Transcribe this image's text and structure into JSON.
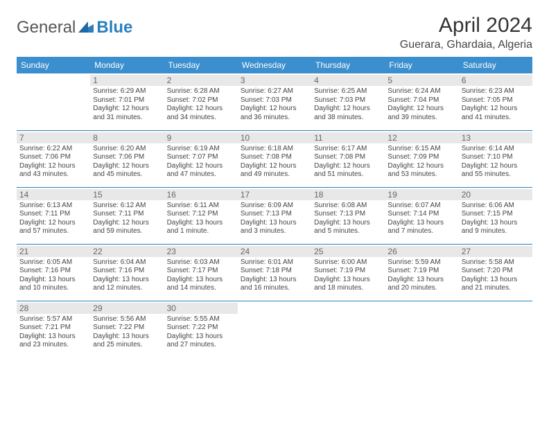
{
  "logo": {
    "word1": "General",
    "word2": "Blue"
  },
  "header": {
    "title": "April 2024",
    "location": "Guerara, Ghardaia, Algeria"
  },
  "style": {
    "header_bg": "#3b8fce",
    "header_fg": "#ffffff",
    "border_color": "#2a7fbf",
    "daynum_bg": "#e8e8e8",
    "logo_blue": "#2a7fbf",
    "title_fontsize": 30,
    "location_fontsize": 16,
    "th_fontsize": 12,
    "cell_fontsize": 10
  },
  "weekdays": [
    "Sunday",
    "Monday",
    "Tuesday",
    "Wednesday",
    "Thursday",
    "Friday",
    "Saturday"
  ],
  "days": [
    {
      "n": 1,
      "sr": "6:29 AM",
      "ss": "7:01 PM",
      "dl": "12 hours and 31 minutes."
    },
    {
      "n": 2,
      "sr": "6:28 AM",
      "ss": "7:02 PM",
      "dl": "12 hours and 34 minutes."
    },
    {
      "n": 3,
      "sr": "6:27 AM",
      "ss": "7:03 PM",
      "dl": "12 hours and 36 minutes."
    },
    {
      "n": 4,
      "sr": "6:25 AM",
      "ss": "7:03 PM",
      "dl": "12 hours and 38 minutes."
    },
    {
      "n": 5,
      "sr": "6:24 AM",
      "ss": "7:04 PM",
      "dl": "12 hours and 39 minutes."
    },
    {
      "n": 6,
      "sr": "6:23 AM",
      "ss": "7:05 PM",
      "dl": "12 hours and 41 minutes."
    },
    {
      "n": 7,
      "sr": "6:22 AM",
      "ss": "7:06 PM",
      "dl": "12 hours and 43 minutes."
    },
    {
      "n": 8,
      "sr": "6:20 AM",
      "ss": "7:06 PM",
      "dl": "12 hours and 45 minutes."
    },
    {
      "n": 9,
      "sr": "6:19 AM",
      "ss": "7:07 PM",
      "dl": "12 hours and 47 minutes."
    },
    {
      "n": 10,
      "sr": "6:18 AM",
      "ss": "7:08 PM",
      "dl": "12 hours and 49 minutes."
    },
    {
      "n": 11,
      "sr": "6:17 AM",
      "ss": "7:08 PM",
      "dl": "12 hours and 51 minutes."
    },
    {
      "n": 12,
      "sr": "6:15 AM",
      "ss": "7:09 PM",
      "dl": "12 hours and 53 minutes."
    },
    {
      "n": 13,
      "sr": "6:14 AM",
      "ss": "7:10 PM",
      "dl": "12 hours and 55 minutes."
    },
    {
      "n": 14,
      "sr": "6:13 AM",
      "ss": "7:11 PM",
      "dl": "12 hours and 57 minutes."
    },
    {
      "n": 15,
      "sr": "6:12 AM",
      "ss": "7:11 PM",
      "dl": "12 hours and 59 minutes."
    },
    {
      "n": 16,
      "sr": "6:11 AM",
      "ss": "7:12 PM",
      "dl": "13 hours and 1 minute."
    },
    {
      "n": 17,
      "sr": "6:09 AM",
      "ss": "7:13 PM",
      "dl": "13 hours and 3 minutes."
    },
    {
      "n": 18,
      "sr": "6:08 AM",
      "ss": "7:13 PM",
      "dl": "13 hours and 5 minutes."
    },
    {
      "n": 19,
      "sr": "6:07 AM",
      "ss": "7:14 PM",
      "dl": "13 hours and 7 minutes."
    },
    {
      "n": 20,
      "sr": "6:06 AM",
      "ss": "7:15 PM",
      "dl": "13 hours and 9 minutes."
    },
    {
      "n": 21,
      "sr": "6:05 AM",
      "ss": "7:16 PM",
      "dl": "13 hours and 10 minutes."
    },
    {
      "n": 22,
      "sr": "6:04 AM",
      "ss": "7:16 PM",
      "dl": "13 hours and 12 minutes."
    },
    {
      "n": 23,
      "sr": "6:03 AM",
      "ss": "7:17 PM",
      "dl": "13 hours and 14 minutes."
    },
    {
      "n": 24,
      "sr": "6:01 AM",
      "ss": "7:18 PM",
      "dl": "13 hours and 16 minutes."
    },
    {
      "n": 25,
      "sr": "6:00 AM",
      "ss": "7:19 PM",
      "dl": "13 hours and 18 minutes."
    },
    {
      "n": 26,
      "sr": "5:59 AM",
      "ss": "7:19 PM",
      "dl": "13 hours and 20 minutes."
    },
    {
      "n": 27,
      "sr": "5:58 AM",
      "ss": "7:20 PM",
      "dl": "13 hours and 21 minutes."
    },
    {
      "n": 28,
      "sr": "5:57 AM",
      "ss": "7:21 PM",
      "dl": "13 hours and 23 minutes."
    },
    {
      "n": 29,
      "sr": "5:56 AM",
      "ss": "7:22 PM",
      "dl": "13 hours and 25 minutes."
    },
    {
      "n": 30,
      "sr": "5:55 AM",
      "ss": "7:22 PM",
      "dl": "13 hours and 27 minutes."
    }
  ],
  "labels": {
    "sunrise": "Sunrise:",
    "sunset": "Sunset:",
    "daylight": "Daylight:"
  },
  "first_weekday_index": 1
}
